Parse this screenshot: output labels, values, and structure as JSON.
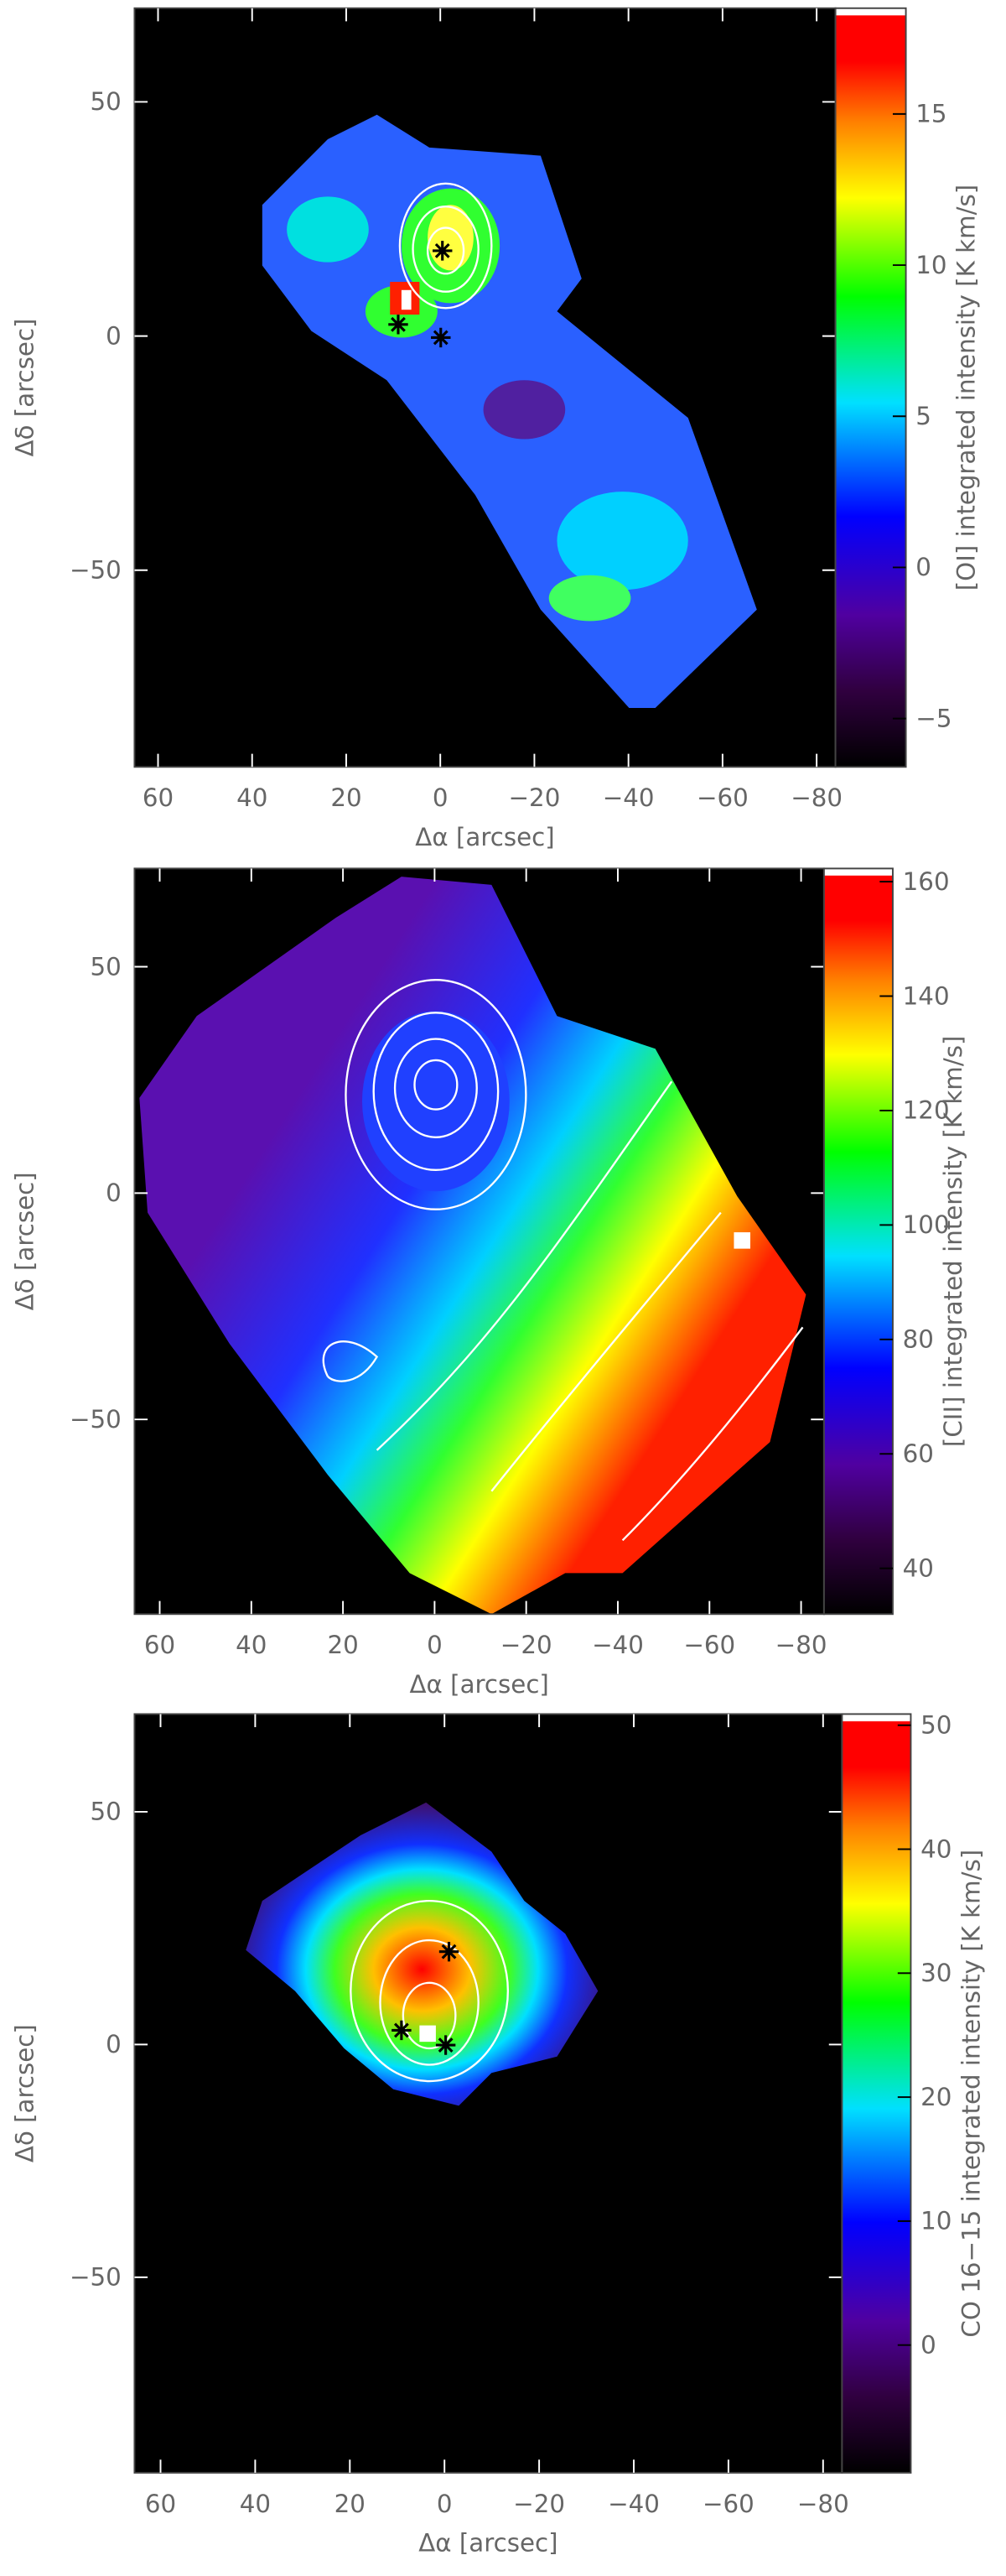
{
  "chart_data": [
    {
      "type": "heatmap",
      "xlabel": "Δα [arcsec]",
      "ylabel": "Δδ [arcsec]",
      "colorbar_label": "[OI] integrated intensity [K km/s]",
      "xlim": [
        65,
        -84
      ],
      "ylim": [
        -92,
        70
      ],
      "xticks": [
        60,
        40,
        20,
        0,
        {
          "value": -20,
          "label": "−20"
        },
        {
          "value": -40,
          "label": "−40"
        },
        {
          "value": -60,
          "label": "−60"
        },
        {
          "value": -80,
          "label": "−80"
        }
      ],
      "yticks": [
        50,
        0,
        {
          "value": -50,
          "label": "−50"
        }
      ],
      "clim": [
        -6.6,
        18.5
      ],
      "cticks": [
        15,
        10,
        5,
        0,
        {
          "value": -5,
          "label": "−5"
        }
      ]
    },
    {
      "type": "heatmap",
      "xlabel": "Δα [arcsec]",
      "ylabel": "Δδ [arcsec]",
      "colorbar_label": "[CII] integrated intensity [K km/s]",
      "xlim": [
        65.5,
        -85
      ],
      "ylim": [
        -93,
        71.7
      ],
      "xticks": [
        60,
        40,
        20,
        0,
        {
          "value": -20,
          "label": "−20"
        },
        {
          "value": -40,
          "label": "−40"
        },
        {
          "value": -60,
          "label": "−60"
        },
        {
          "value": -80,
          "label": "−80"
        }
      ],
      "yticks": [
        50,
        0,
        {
          "value": -50,
          "label": "−50"
        }
      ],
      "clim": [
        32,
        162.3
      ],
      "cticks": [
        160,
        140,
        120,
        100,
        80,
        60,
        40
      ]
    },
    {
      "type": "heatmap",
      "xlabel": "Δα [arcsec]",
      "ylabel": "Δδ [arcsec]",
      "colorbar_label": "CO 16−15 integrated intensity [K km/s]",
      "xlim": [
        65.5,
        -84
      ],
      "ylim": [
        -92,
        71
      ],
      "xticks": [
        60,
        40,
        20,
        0,
        {
          "value": -20,
          "label": "−20"
        },
        {
          "value": -40,
          "label": "−40"
        },
        {
          "value": -60,
          "label": "−60"
        },
        {
          "value": -80,
          "label": "−80"
        }
      ],
      "yticks": [
        50,
        0,
        {
          "value": -50,
          "label": "−50"
        }
      ],
      "clim": [
        -10.3,
        50.9
      ],
      "cticks": [
        50,
        40,
        30,
        20,
        10,
        0
      ]
    }
  ]
}
